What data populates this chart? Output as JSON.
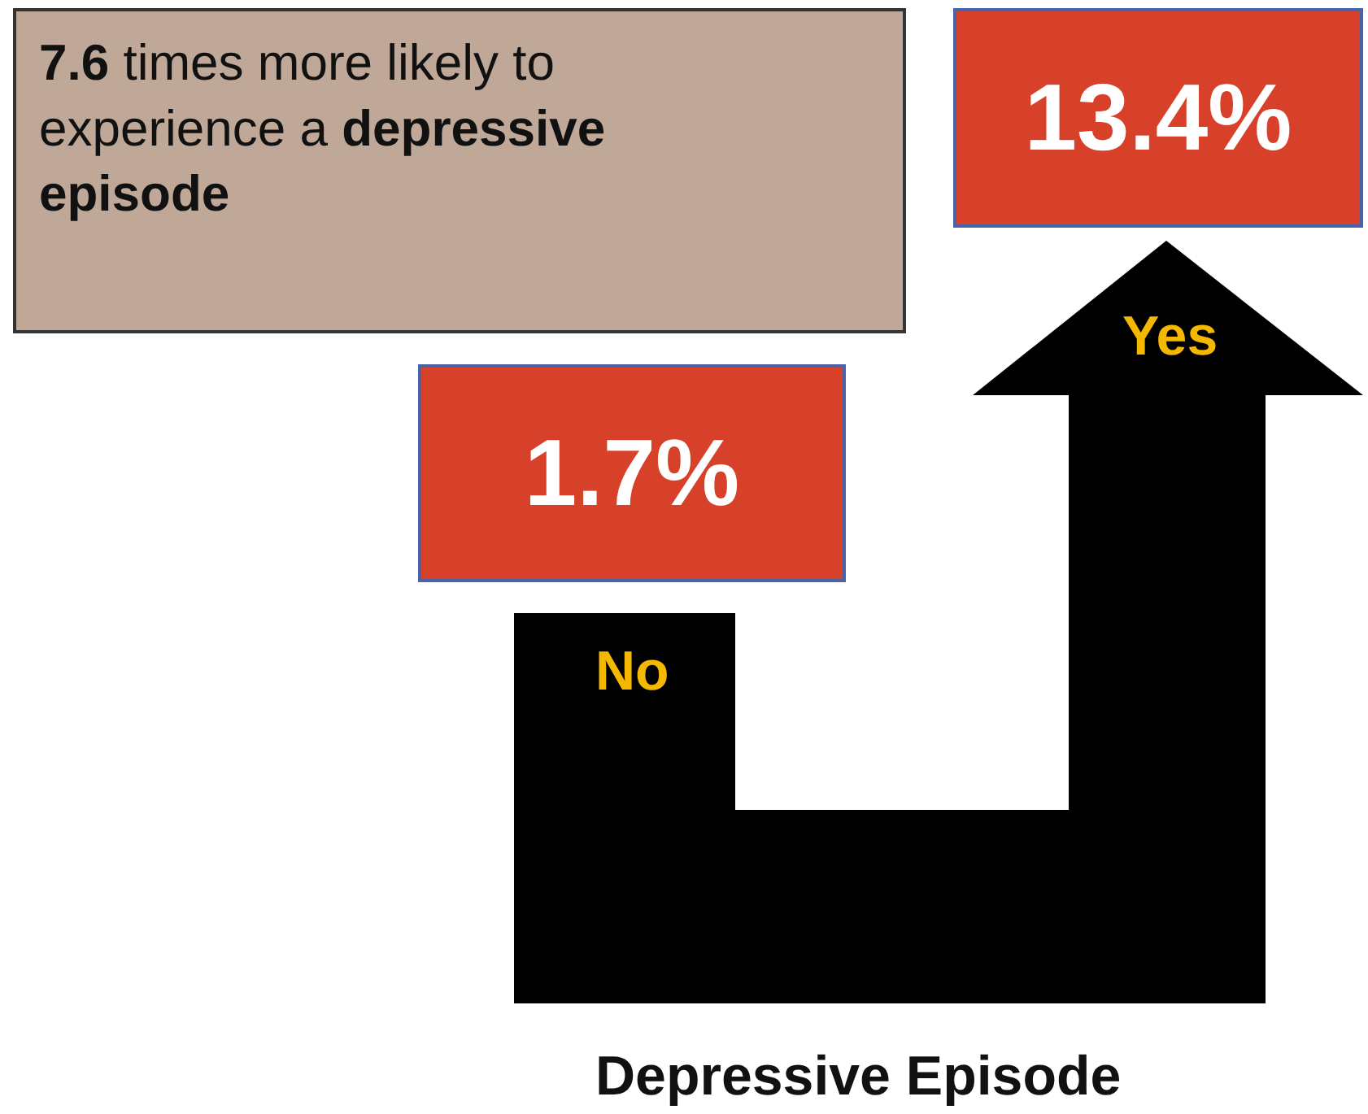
{
  "chart_data": {
    "type": "other",
    "xlabel": "Depressive Episode",
    "categories": [
      "No",
      "Yes"
    ],
    "values": [
      1.7,
      13.4
    ],
    "value_labels": [
      "1.7%",
      "13.4%"
    ],
    "data_labels": true,
    "colors": [
      "#d84129",
      "#d84129"
    ],
    "annotations": [
      "7.6 times more likely to experience a depressive episode"
    ]
  }
}
